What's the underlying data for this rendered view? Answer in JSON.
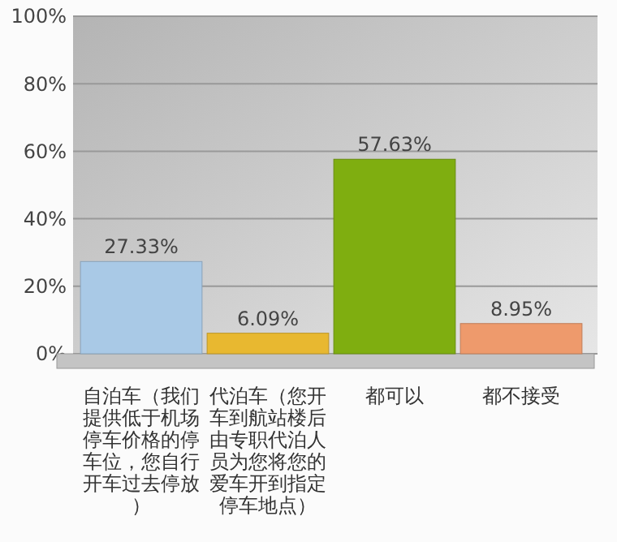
{
  "chart_data": {
    "type": "bar",
    "categories": [
      "自泊车（我们提供低于机场停车价格的停车位，您自行开车过去停放）",
      "代泊车（您开车到航站楼后由专职代泊人员为您将您的爱车开到指定停车地点）",
      "都可以",
      "都不接受"
    ],
    "values": [
      27.33,
      6.09,
      57.63,
      8.95
    ],
    "colors": [
      "#a9c9e6",
      "#e8b830",
      "#7fae10",
      "#ee9a6c"
    ],
    "value_labels": [
      "27.33%",
      "6.09%",
      "57.63%",
      "8.95%"
    ],
    "ylim": [
      0,
      100
    ],
    "yticks": [
      {
        "value": 0,
        "label": "0%"
      },
      {
        "value": 20,
        "label": "20%"
      },
      {
        "value": 40,
        "label": "40%"
      },
      {
        "value": 60,
        "label": "60%"
      },
      {
        "value": 80,
        "label": "80%"
      },
      {
        "value": 100,
        "label": "100%"
      }
    ],
    "grid": "y"
  }
}
